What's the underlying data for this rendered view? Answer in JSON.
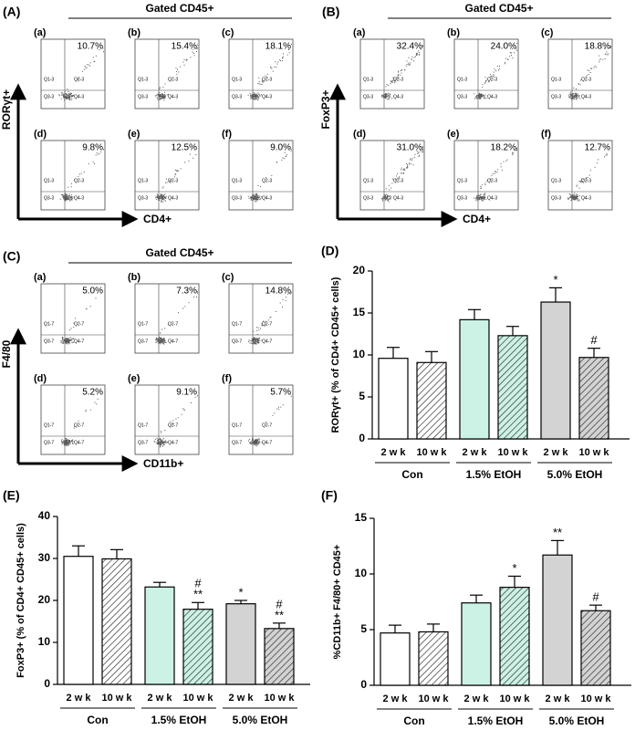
{
  "chart_data": [
    {
      "type": "flow",
      "panel": "(A)",
      "title": "Gated CD45+",
      "y_label": "RORγt+",
      "x_label": "CD4+",
      "categories": [
        "(a)",
        "(b)",
        "(c)",
        "(d)",
        "(e)",
        "(f)"
      ],
      "values": [
        10.7,
        15.4,
        18.1,
        9.8,
        12.5,
        9.0
      ],
      "value_labels": [
        "10.7%",
        "15.4%",
        "18.1%",
        "9.8%",
        "12.5%",
        "9.0%"
      ],
      "quadrants": [
        "Q1-3",
        "Q2-3",
        "Q3-3",
        "Q4-3"
      ]
    },
    {
      "type": "flow",
      "panel": "(B)",
      "title": "Gated CD45+",
      "y_label": "FoxP3+",
      "x_label": "CD4+",
      "categories": [
        "(a)",
        "(b)",
        "(c)",
        "(d)",
        "(e)",
        "(f)"
      ],
      "values": [
        32.4,
        24.0,
        18.8,
        31.0,
        18.2,
        12.7
      ],
      "value_labels": [
        "32.4%",
        "24.0%",
        "18.8%",
        "31.0%",
        "18.2%",
        "12.7%"
      ],
      "quadrants": [
        "Q1-3",
        "Q2-3",
        "Q3-3",
        "Q4-3"
      ]
    },
    {
      "type": "flow",
      "panel": "(C)",
      "title": "Gated CD45+",
      "y_label": "F4/80",
      "x_label": "CD11b+",
      "categories": [
        "(a)",
        "(b)",
        "(c)",
        "(d)",
        "(e)",
        "(f)"
      ],
      "values": [
        5.0,
        7.3,
        14.8,
        5.2,
        9.1,
        5.7
      ],
      "value_labels": [
        "5.0%",
        "7.3%",
        "14.8%",
        "5.2%",
        "9.1%",
        "5.7%"
      ],
      "quadrants": [
        "Q1-7",
        "Q2-7",
        "Q3-7",
        "Q4-7"
      ]
    },
    {
      "type": "bar",
      "panel": "(D)",
      "y_label": "RORγt+ (% of CD4+ CD45+ cells)",
      "categories": [
        "2 w k",
        "10 w k",
        "2 w k",
        "10 w k",
        "2 w k",
        "10 w k"
      ],
      "groups": [
        "Con",
        "1.5% EtOH",
        "5.0% EtOH"
      ],
      "values": [
        9.6,
        9.1,
        14.2,
        12.3,
        16.3,
        9.7
      ],
      "errors": [
        1.3,
        1.3,
        1.2,
        1.1,
        1.7,
        1.1
      ],
      "colors": [
        "#ffffff",
        "#ffffff",
        "#ccf2e6",
        "#ccf2e6",
        "#d3d3d3",
        "#d3d3d3"
      ],
      "hatched": [
        false,
        true,
        false,
        true,
        false,
        true
      ],
      "significance": [
        null,
        null,
        null,
        null,
        [
          "*"
        ],
        [
          "#"
        ]
      ],
      "ylim": [
        0,
        20
      ],
      "yticks": [
        0,
        5,
        10,
        15,
        20
      ]
    },
    {
      "type": "bar",
      "panel": "(E)",
      "y_label": "FoxP3+ (% of CD4+ CD45+ cells)",
      "categories": [
        "2 w k",
        "10 w k",
        "2 w k",
        "10 w k",
        "2 w k",
        "10 w k"
      ],
      "groups": [
        "Con",
        "1.5% EtOH",
        "5.0% EtOH"
      ],
      "values": [
        30.5,
        29.9,
        23.2,
        17.9,
        19.2,
        13.3
      ],
      "errors": [
        2.5,
        2.2,
        1.1,
        1.6,
        0.8,
        1.3
      ],
      "colors": [
        "#ffffff",
        "#ffffff",
        "#ccf2e6",
        "#ccf2e6",
        "#d3d3d3",
        "#d3d3d3"
      ],
      "hatched": [
        false,
        true,
        false,
        true,
        false,
        true
      ],
      "significance": [
        null,
        null,
        null,
        [
          "#",
          "**"
        ],
        [
          "*"
        ],
        [
          "#",
          "**"
        ]
      ],
      "ylim": [
        0,
        40
      ],
      "yticks": [
        0,
        10,
        20,
        30,
        40
      ]
    },
    {
      "type": "bar",
      "panel": "(F)",
      "y_label": "%CD11b+ F4/80+ CD45+",
      "categories": [
        "2 w k",
        "10 w k",
        "2 w k",
        "10 w k",
        "2 w k",
        "10 w k"
      ],
      "groups": [
        "Con",
        "1.5% EtOH",
        "5.0% EtOH"
      ],
      "values": [
        4.7,
        4.8,
        7.4,
        8.8,
        11.7,
        6.7
      ],
      "errors": [
        0.7,
        0.7,
        0.7,
        1.0,
        1.3,
        0.5
      ],
      "colors": [
        "#ffffff",
        "#ffffff",
        "#ccf2e6",
        "#ccf2e6",
        "#d3d3d3",
        "#d3d3d3"
      ],
      "hatched": [
        false,
        true,
        false,
        true,
        false,
        true
      ],
      "significance": [
        null,
        null,
        null,
        [
          "*"
        ],
        [
          "**"
        ],
        [
          "#"
        ]
      ],
      "ylim": [
        0,
        15
      ],
      "yticks": [
        0,
        5,
        10,
        15
      ]
    }
  ]
}
